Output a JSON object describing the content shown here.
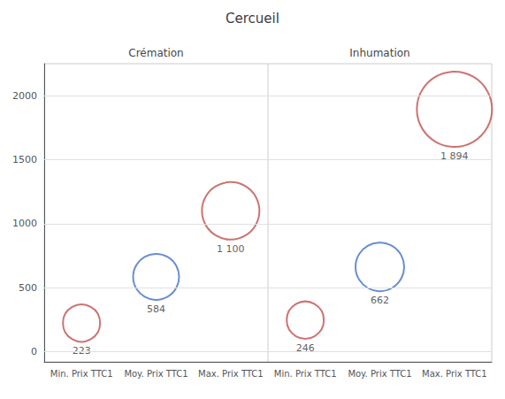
{
  "chart_data": {
    "type": "scatter",
    "title": "Cercueil",
    "annotations": [
      "Crémation",
      "Inhumation"
    ],
    "categories": [
      "Min. Prix TTC1",
      "Moy. Prix TTC1",
      "Max. Prix TTC1",
      "Min. Prix TTC1",
      "Moy. Prix TTC1",
      "Max. Prix TTC1"
    ],
    "values": [
      223,
      584,
      1100,
      246,
      662,
      1894
    ],
    "value_labels": [
      "223",
      "584",
      "1 100",
      "246",
      "662",
      "1 894"
    ],
    "sizes": [
      42,
      52,
      65,
      42,
      55,
      85
    ],
    "colors": [
      "#c0504d",
      "#4472c4",
      "#c0504d",
      "#c0504d",
      "#4472c4",
      "#c0504d"
    ],
    "ylim": [
      -80,
      2250
    ],
    "yticks": [
      0,
      500,
      1000,
      1500,
      2000
    ],
    "grid": true,
    "data_labels": true,
    "marker": "circle"
  }
}
